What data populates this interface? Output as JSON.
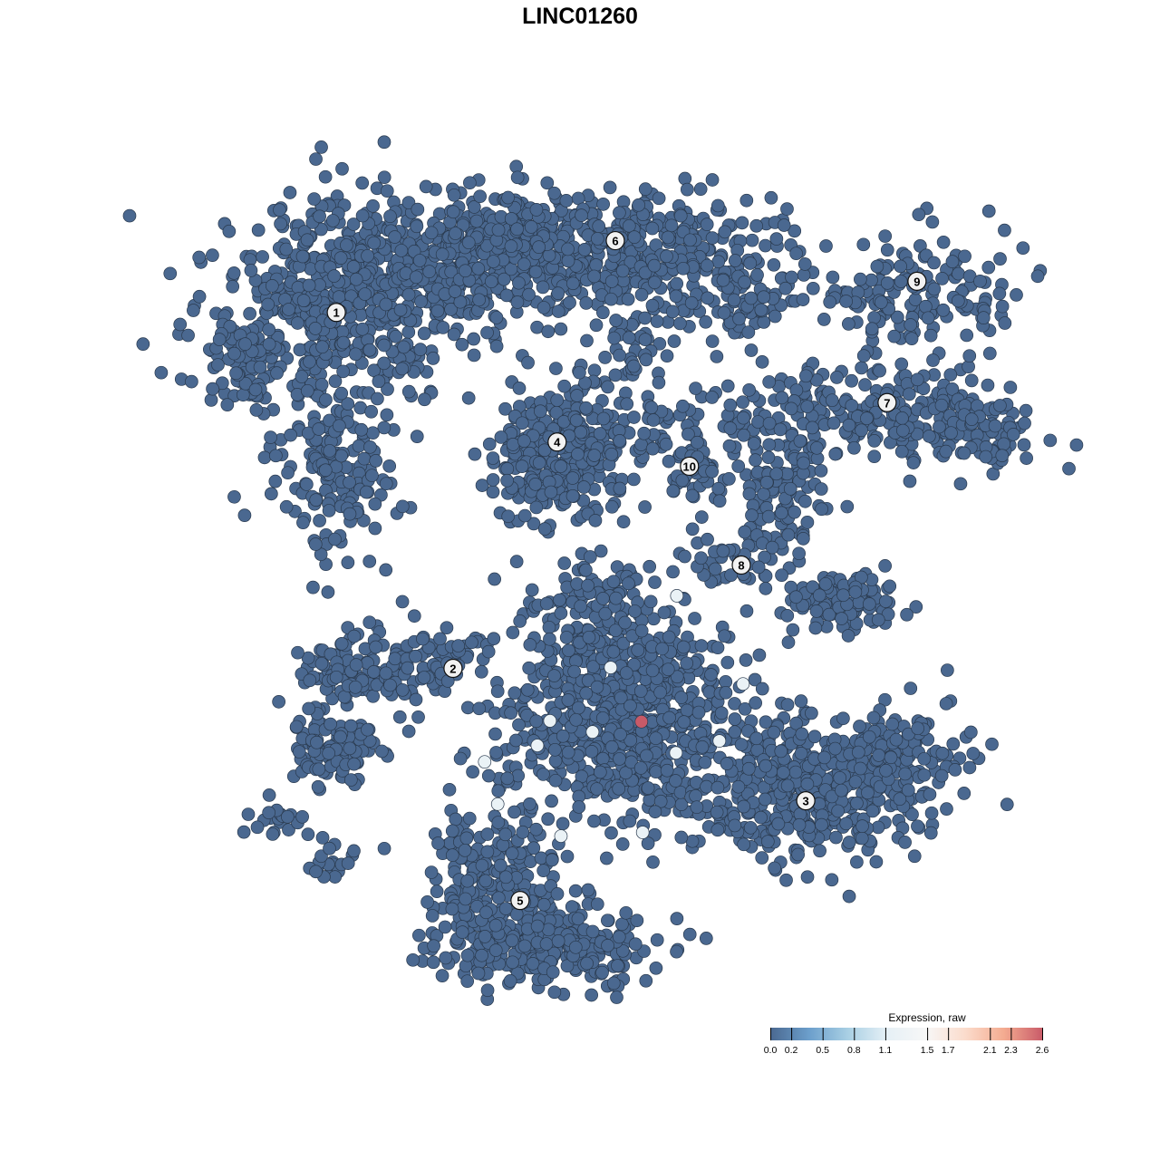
{
  "title": "LINC01260",
  "chart_data": {
    "type": "scatter",
    "title": "LINC01260",
    "xlabel": "",
    "ylabel": "",
    "xlim": [
      -10,
      10
    ],
    "ylim": [
      -10,
      10
    ],
    "grid": false,
    "point_color_default": "#4a6890",
    "point_edge_color": "#2a3a4e",
    "cluster_labels": [
      {
        "label": "1",
        "x": -6.32,
        "y": 6.47
      },
      {
        "label": "2",
        "x": -3.55,
        "y": -2.21
      },
      {
        "label": "3",
        "x": 4.82,
        "y": -5.44
      },
      {
        "label": "4",
        "x": -1.08,
        "y": 3.31
      },
      {
        "label": "5",
        "x": -1.96,
        "y": -7.87
      },
      {
        "label": "6",
        "x": 0.3,
        "y": 8.22
      },
      {
        "label": "7",
        "x": 6.75,
        "y": 4.27
      },
      {
        "label": "8",
        "x": 3.29,
        "y": 0.31
      },
      {
        "label": "9",
        "x": 7.46,
        "y": 7.23
      },
      {
        "label": "10",
        "x": 2.06,
        "y": 2.72
      }
    ],
    "cluster_regions": [
      {
        "cluster": "1",
        "x": -6.5,
        "y": 6.5,
        "sx": 1.8,
        "sy": 1.6,
        "n": 500
      },
      {
        "cluster": "1",
        "x": -4.0,
        "y": 7.5,
        "sx": 1.5,
        "sy": 1.0,
        "n": 250
      },
      {
        "cluster": "1",
        "x": -6.3,
        "y": 2.5,
        "sx": 0.9,
        "sy": 1.2,
        "n": 150
      },
      {
        "cluster": "1",
        "x": -8.5,
        "y": 5.3,
        "sx": 0.5,
        "sy": 0.8,
        "n": 60
      },
      {
        "cluster": "6",
        "x": 0.0,
        "y": 8.0,
        "sx": 2.2,
        "sy": 0.9,
        "n": 450
      },
      {
        "cluster": "6",
        "x": -2.5,
        "y": 8.5,
        "sx": 1.0,
        "sy": 0.6,
        "n": 100
      },
      {
        "cluster": "6",
        "x": 3.0,
        "y": 7.0,
        "sx": 1.2,
        "sy": 0.8,
        "n": 120
      },
      {
        "cluster": "6",
        "x": 0.5,
        "y": 5.5,
        "sx": 0.5,
        "sy": 0.8,
        "n": 40
      },
      {
        "cluster": "4",
        "x": -1.08,
        "y": 3.0,
        "sx": 0.9,
        "sy": 1.0,
        "n": 350
      },
      {
        "cluster": "10",
        "x": 2.0,
        "y": 3.5,
        "sx": 1.2,
        "sy": 0.6,
        "n": 80
      },
      {
        "cluster": "10",
        "x": 2.06,
        "y": 2.6,
        "sx": 0.4,
        "sy": 0.6,
        "n": 40
      },
      {
        "cluster": "9",
        "x": 7.5,
        "y": 7.0,
        "sx": 1.4,
        "sy": 0.8,
        "n": 150
      },
      {
        "cluster": "7",
        "x": 6.5,
        "y": 4.0,
        "sx": 2.0,
        "sy": 0.7,
        "n": 250
      },
      {
        "cluster": "7",
        "x": 9.0,
        "y": 3.5,
        "sx": 0.8,
        "sy": 0.5,
        "n": 60
      },
      {
        "cluster": "7",
        "x": 4.3,
        "y": 1.8,
        "sx": 0.6,
        "sy": 0.8,
        "n": 100
      },
      {
        "cluster": "8",
        "x": 5.7,
        "y": -0.6,
        "sx": 0.8,
        "sy": 0.4,
        "n": 120
      },
      {
        "cluster": "8",
        "x": 3.0,
        "y": 0.3,
        "sx": 0.8,
        "sy": 0.3,
        "n": 40
      },
      {
        "cluster": "2",
        "x": -6.3,
        "y": -4.2,
        "sx": 0.6,
        "sy": 0.5,
        "n": 100
      },
      {
        "cluster": "2",
        "x": -5.8,
        "y": -2.3,
        "sx": 0.9,
        "sy": 0.6,
        "n": 120
      },
      {
        "cluster": "2",
        "x": -3.7,
        "y": -2.0,
        "sx": 0.6,
        "sy": 0.5,
        "n": 50
      },
      {
        "cluster": "2",
        "x": -7.6,
        "y": -6.0,
        "sx": 0.4,
        "sy": 0.3,
        "n": 20
      },
      {
        "cluster": "2",
        "x": -6.5,
        "y": -7.0,
        "sx": 0.4,
        "sy": 0.3,
        "n": 20
      },
      {
        "cluster": "5",
        "x": 0.5,
        "y": -3.5,
        "sx": 1.8,
        "sy": 1.3,
        "n": 700
      },
      {
        "cluster": "5",
        "x": -1.5,
        "y": -9.0,
        "sx": 1.5,
        "sy": 0.6,
        "n": 300
      },
      {
        "cluster": "5",
        "x": -2.5,
        "y": -7.2,
        "sx": 1.0,
        "sy": 1.0,
        "n": 200
      },
      {
        "cluster": "5",
        "x": 0.0,
        "y": -1.0,
        "sx": 1.2,
        "sy": 0.8,
        "n": 150
      },
      {
        "cluster": "3",
        "x": 4.8,
        "y": -5.3,
        "sx": 1.6,
        "sy": 1.0,
        "n": 400
      },
      {
        "cluster": "3",
        "x": 7.0,
        "y": -4.3,
        "sx": 1.0,
        "sy": 0.7,
        "n": 150
      }
    ],
    "expressing_points": [
      {
        "x": 1.76,
        "y": -0.44,
        "value": 1.2
      },
      {
        "x": 0.19,
        "y": -2.19,
        "value": 1.2
      },
      {
        "x": 3.33,
        "y": -2.59,
        "value": 1.2
      },
      {
        "x": -1.25,
        "y": -3.49,
        "value": 1.2
      },
      {
        "x": -0.24,
        "y": -3.76,
        "value": 1.2
      },
      {
        "x": -1.55,
        "y": -4.09,
        "value": 1.2
      },
      {
        "x": 1.74,
        "y": -4.27,
        "value": 1.2
      },
      {
        "x": 2.77,
        "y": -3.98,
        "value": 1.2
      },
      {
        "x": -2.8,
        "y": -4.49,
        "value": 1.2
      },
      {
        "x": -2.49,
        "y": -5.52,
        "value": 1.2
      },
      {
        "x": -0.99,
        "y": -6.3,
        "value": 1.2
      },
      {
        "x": 0.95,
        "y": -6.21,
        "value": 1.2
      },
      {
        "x": 0.92,
        "y": -3.51,
        "value": 2.6
      }
    ],
    "legend": {
      "title": "Expression, raw",
      "placement": "bottom-right",
      "range": [
        0,
        2.6
      ],
      "ticks": [
        "0.0",
        "0.2",
        "0.5",
        "0.8",
        "1.1",
        "1.5",
        "1.7",
        "2.1",
        "2.3",
        "2.6"
      ],
      "colors": [
        "#4a6890",
        "#6c9fcc",
        "#a9d0e4",
        "#e6f0f6",
        "#f7f7f7",
        "#fbdccc",
        "#f4ab90",
        "#c85a68"
      ]
    }
  }
}
